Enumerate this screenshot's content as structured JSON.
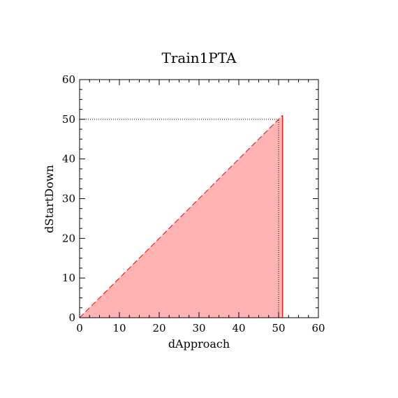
{
  "chart_data": {
    "type": "area",
    "title": "Train1PTA",
    "xlabel": "dApproach",
    "ylabel": "dStartDown",
    "xlim": [
      0,
      60
    ],
    "ylim": [
      0,
      60
    ],
    "x_ticks": [
      "0",
      "10",
      "20",
      "30",
      "40",
      "50",
      "60"
    ],
    "y_ticks": [
      "0",
      "10",
      "20",
      "30",
      "40",
      "50",
      "60"
    ],
    "grid": false,
    "region": {
      "fill_color": "#ffb3b3",
      "edge_color": "#ff0000",
      "points": [
        [
          0,
          0
        ],
        [
          51,
          51
        ],
        [
          51,
          0
        ]
      ]
    },
    "reference_lines": {
      "x": 50,
      "y": 50,
      "style": "dotted"
    }
  }
}
